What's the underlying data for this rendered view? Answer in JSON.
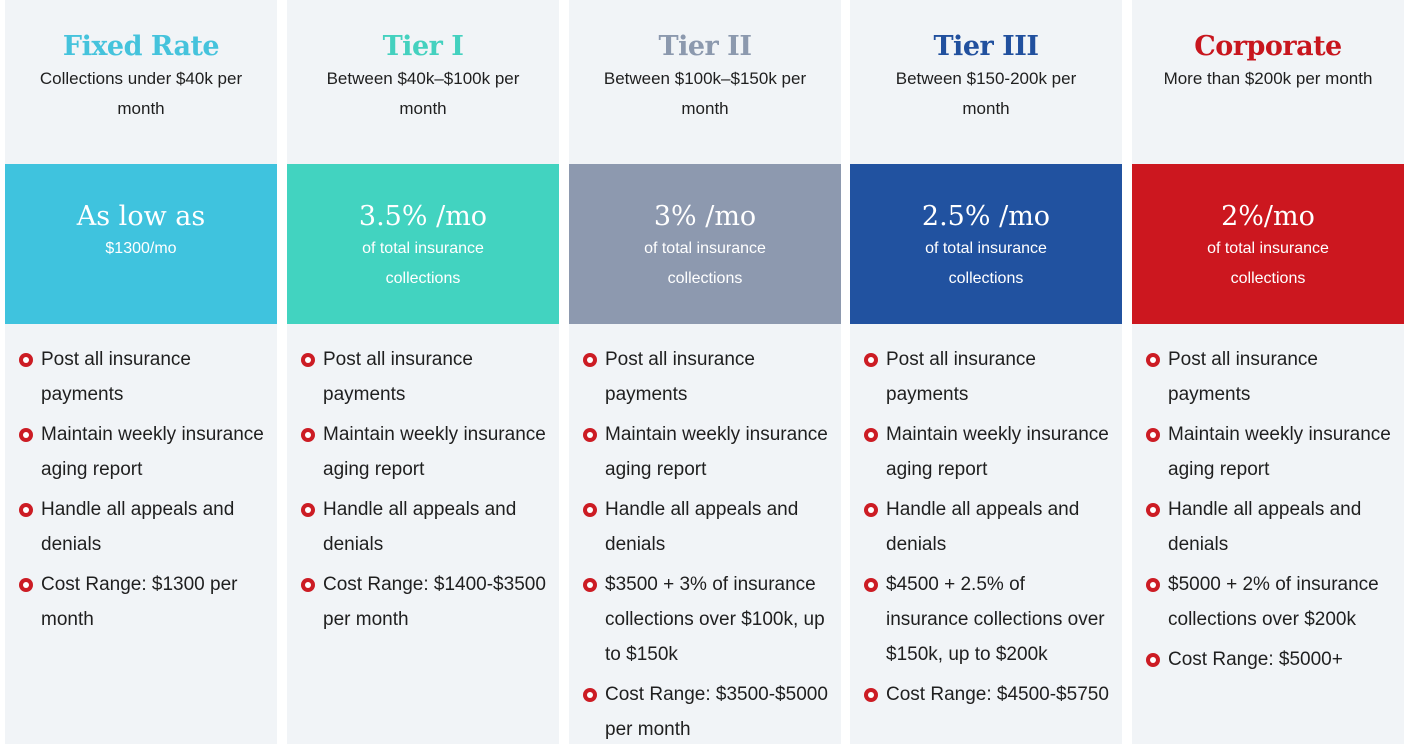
{
  "colors": {
    "column_bg": "#f1f4f7",
    "bullet": "#cc1c24",
    "text": "#1f1f1f"
  },
  "tiers": [
    {
      "name": "Fixed Rate",
      "subtitle": "Collections under $40k per month",
      "price": "As low as",
      "price_note": "$1300/mo",
      "name_color": "#45c3dc",
      "band_color": "#3fc3de",
      "bullet_icon": "circle-dot-icon",
      "features": [
        "Post all insurance payments",
        "Maintain weekly insurance aging report",
        "Handle all appeals and denials",
        "Cost Range: $1300 per month"
      ]
    },
    {
      "name": "Tier I",
      "subtitle": "Between $40k–$100k per month",
      "price": "3.5% /mo",
      "price_note": "of total insurance collections",
      "name_color": "#44d1bf",
      "band_color": "#42d3c0",
      "bullet_icon": "circle-dot-icon",
      "features": [
        "Post all insurance payments",
        "Maintain weekly insurance aging report",
        "Handle all appeals and denials",
        "Cost Range: $1400-$3500 per month"
      ]
    },
    {
      "name": "Tier II",
      "subtitle": "Between $100k–$150k per month",
      "price": "3% /mo",
      "price_note": "of total insurance collections",
      "name_color": "#8c99ae",
      "band_color": "#8d99af",
      "bullet_icon": "circle-dot-icon",
      "features": [
        "Post all insurance payments",
        "Maintain weekly insurance aging report",
        "Handle all appeals and denials",
        "$3500 + 3% of insurance collections over $100k, up to $150k",
        "Cost Range: $3500-$5000 per month"
      ]
    },
    {
      "name": "Tier III",
      "subtitle": "Between $150-200k per month",
      "price": "2.5% /mo",
      "price_note": "of total insurance collections",
      "name_color": "#21509e",
      "band_color": "#2152a0",
      "bullet_icon": "circle-dot-icon",
      "features": [
        "Post all insurance payments",
        "Maintain weekly insurance aging report",
        "Handle all appeals and denials",
        "$4500 + 2.5% of insurance collections over $150k, up to $200k",
        "Cost Range: $4500-$5750"
      ]
    },
    {
      "name": "Corporate",
      "subtitle": "More than $200k per month",
      "price": "2%/mo",
      "price_note": "of total insurance collections",
      "name_color": "#c8161e",
      "band_color": "#cc171f",
      "bullet_icon": "circle-dot-icon",
      "features": [
        "Post all insurance payments",
        "Maintain weekly insurance aging report",
        "Handle all appeals and denials",
        "$5000 + 2% of insurance collections over $200k",
        "Cost Range: $5000+"
      ]
    }
  ]
}
